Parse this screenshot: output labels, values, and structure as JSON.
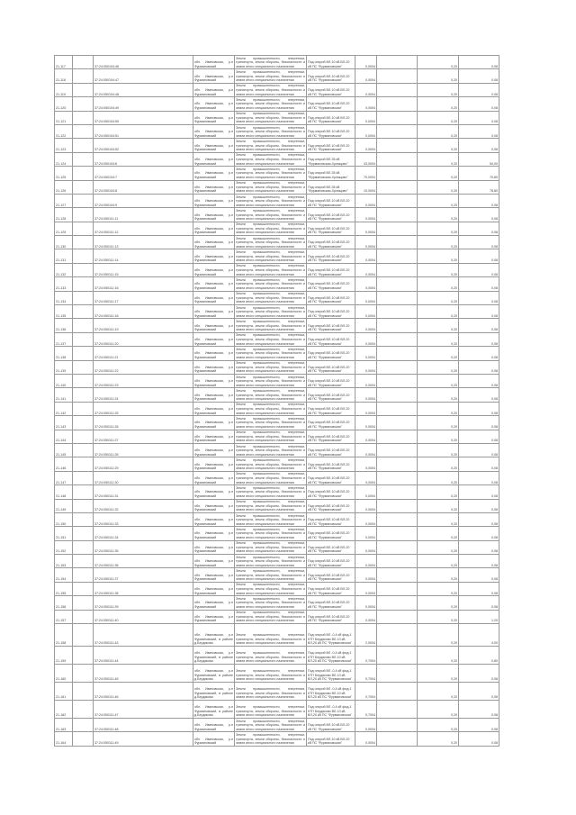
{
  "rows": [
    {
      "id": "21-117",
      "cad": "37:24:050104:46",
      "addr": "обл. Ивановская, р-н Фурмановский",
      "cat": "Земли промышленности, энергетики, транспорта, земли обороны, безопасности и земли иного специального назначения",
      "desc": "Под опорой ВЛ-10 кВ ВЛ-20 кВ ПС \"Фурмановская\"",
      "area": "0,0004",
      "c8": "0,20",
      "c9": "0,08"
    },
    {
      "id": "21-118",
      "cad": "37:24:050104:47",
      "addr": "обл. Ивановская, р-н Фурмановский",
      "cat": "Земли промышленности, энергетики, транспорта, земли обороны, безопасности и земли иного специального назначения",
      "desc": "Под опорой ВЛ-10 кВ ВЛ-20 кВ ПС \"Фурмановская\"",
      "area": "0,0004",
      "c8": "0,20",
      "c9": "0,08"
    },
    {
      "id": "21-119",
      "cad": "37:24:050104:48",
      "addr": "обл. Ивановская, р-н Фурмановский",
      "cat": "Земли промышленности, энергетики, транспорта, земли обороны, безопасности и земли иного специального назначения",
      "desc": "Под опорой ВЛ-10 кВ ВЛ-20 кВ ПС \"Фурмановская\"",
      "area": "0,0004",
      "c8": "0,20",
      "c9": "0,08"
    },
    {
      "id": "21-120",
      "cad": "37:24:050104:49",
      "addr": "обл. Ивановская, р-н Фурмановский",
      "cat": "Земли промышленности, энергетики, транспорта, земли обороны, безопасности и земли иного специального назначения",
      "desc": "Под опорой ВЛ-10 кВ ВЛ-20 кВ ПС \"Фурмановская\"",
      "area": "0,0004",
      "c8": "0,20",
      "c9": "0,08"
    },
    {
      "id": "21-121",
      "cad": "37:24:050104:50",
      "addr": "обл. Ивановская, р-н Фурмановский",
      "cat": "Земли промышленности, энергетики, транспорта, земли обороны, безопасности и земли иного специального назначения",
      "desc": "Под опорой ВЛ-10 кВ ВЛ-20 кВ ПС \"Фурмановская\"",
      "area": "0,0004",
      "c8": "0,20",
      "c9": "0,08"
    },
    {
      "id": "21-122",
      "cad": "37:24:050104:51",
      "addr": "обл. Ивановская, р-н Фурмановский",
      "cat": "Земли промышленности, энергетики, транспорта, земли обороны, безопасности и земли иного специального назначения",
      "desc": "Под опорой ВЛ-10 кВ ВЛ-20 кВ ПС \"Фурмановская\"",
      "area": "0,0004",
      "c8": "0,20",
      "c9": "0,08"
    },
    {
      "id": "21-123",
      "cad": "37:24:050104:52",
      "addr": "обл. Ивановская, р-н Фурмановский",
      "cat": "Земли промышленности, энергетики, транспорта, земли обороны, безопасности и земли иного специального назначения",
      "desc": "Под опорой ВЛ-10 кВ ВЛ-20 кВ ПС \"Фурмановская\"",
      "area": "0,0004",
      "c8": "0,20",
      "c9": "0,08"
    },
    {
      "id": "21-124",
      "cad": "37:24:050104:6",
      "addr": "обл. Ивановская, р-н Фурмановский",
      "cat": "Земли промышленности, энергетики, транспорта, земли обороны, безопасности и земли иного специального назначения",
      "desc": "Под опорой ВЛ-35 кВ \"Фурмановская-Хромцово\"",
      "area": "43,0004",
      "c8": "0,20",
      "c9": "54,00"
    },
    {
      "id": "21-125",
      "cad": "37:24:050104:7",
      "addr": "обл. Ивановская, р-н Фурмановский",
      "cat": "Земли промышленности, энергетики, транспорта, земли обороны, безопасности и земли иного специального назначения",
      "desc": "Под опорой ВЛ-35 кВ \"Фурмановская-Хромцово\"",
      "area": "70,0004",
      "c8": "0,20",
      "c9": "70,80"
    },
    {
      "id": "21-126",
      "cad": "37:24:050104:8",
      "addr": "обл. Ивановская, р-н Фурмановский",
      "cat": "Земли промышленности, энергетики, транспорта, земли обороны, безопасности и земли иного специального назначения",
      "desc": "Под опорой ВЛ-35 кВ \"Фурмановская-Хромцово\"",
      "area": "10,0004",
      "c8": "0,20",
      "c9": "78,80"
    },
    {
      "id": "21-127",
      "cad": "37:24:050104:9",
      "addr": "обл. Ивановская, р-н Фурмановский",
      "cat": "Земли промышленности, энергетики, транспорта, земли обороны, безопасности и земли иного специального назначения",
      "desc": "Под опорой ВЛ-10 кВ ВЛ-20 кВ ПС \"Фурмановская\"",
      "area": "0,0004",
      "c8": "0,20",
      "c9": "0,08"
    },
    {
      "id": "21-128",
      "cad": "37:24:050111:11",
      "addr": "обл. Ивановская, р-н Фурмановский",
      "cat": "Земли промышленности, энергетики, транспорта, земли обороны, безопасности и земли иного специального назначения",
      "desc": "Под опорой ВЛ-10 кВ ВЛ-20 кВ ПС \"Фурмановская\"",
      "area": "0,0004",
      "c8": "0,20",
      "c9": "0,08"
    },
    {
      "id": "21-129",
      "cad": "37:24:050111:12",
      "addr": "обл. Ивановская, р-н Фурмановский",
      "cat": "Земли промышленности, энергетики, транспорта, земли обороны, безопасности и земли иного специального назначения",
      "desc": "Под опорой ВЛ-10 кВ ВЛ-20 кВ ПС \"Фурмановская\"",
      "area": "0,0004",
      "c8": "0,20",
      "c9": "0,08"
    },
    {
      "id": "21-130",
      "cad": "37:24:050111:13",
      "addr": "обл. Ивановская, р-н Фурмановский",
      "cat": "Земли промышленности, энергетики, транспорта, земли обороны, безопасности и земли иного специального назначения",
      "desc": "Под опорой ВЛ-10 кВ ВЛ-20 кВ ПС \"Фурмановская\"",
      "area": "0,0004",
      "c8": "0,20",
      "c9": "0,08"
    },
    {
      "id": "21-131",
      "cad": "37:24:050111:14",
      "addr": "обл. Ивановская, р-н Фурмановский",
      "cat": "Земли промышленности, энергетики, транспорта, земли обороны, безопасности и земли иного специального назначения",
      "desc": "Под опорой ВЛ-10 кВ ВЛ-20 кВ ПС \"Фурмановская\"",
      "area": "0,0004",
      "c8": "0,20",
      "c9": "0,08"
    },
    {
      "id": "21-132",
      "cad": "37:24:050111:15",
      "addr": "обл. Ивановская, р-н Фурмановский",
      "cat": "Земли промышленности, энергетики, транспорта, земли обороны, безопасности и земли иного специального назначения",
      "desc": "Под опорой ВЛ-10 кВ ВЛ-20 кВ ПС \"Фурмановская\"",
      "area": "0,0004",
      "c8": "0,20",
      "c9": "0,08"
    },
    {
      "id": "21-133",
      "cad": "37:24:050111:16",
      "addr": "обл. Ивановская, р-н Фурмановский",
      "cat": "Земли промышленности, энергетики, транспорта, земли обороны, безопасности и земли иного специального назначения",
      "desc": "Под опорой ВЛ-10 кВ ВЛ-20 кВ ПС \"Фурмановская\"",
      "area": "0,0004",
      "c8": "0,20",
      "c9": "0,08"
    },
    {
      "id": "21-134",
      "cad": "37:24:050111:17",
      "addr": "обл. Ивановская, р-н Фурмановский",
      "cat": "Земли промышленности, энергетики, транспорта, земли обороны, безопасности и земли иного специального назначения",
      "desc": "Под опорой ВЛ-10 кВ ВЛ-20 кВ ПС \"Фурмановская\"",
      "area": "0,0004",
      "c8": "0,20",
      "c9": "0,08"
    },
    {
      "id": "21-135",
      "cad": "37:24:050111:18",
      "addr": "обл. Ивановская, р-н Фурмановский",
      "cat": "Земли промышленности, энергетики, транспорта, земли обороны, безопасности и земли иного специального назначения",
      "desc": "Под опорой ВЛ-10 кВ ВЛ-20 кВ ПС \"Фурмановская\"",
      "area": "0,0004",
      "c8": "0,20",
      "c9": "0,08"
    },
    {
      "id": "21-136",
      "cad": "37:24:050111:19",
      "addr": "обл. Ивановская, р-н Фурмановский",
      "cat": "Земли промышленности, энергетики, транспорта, земли обороны, безопасности и земли иного специального назначения",
      "desc": "Под опорой ВЛ-10 кВ ВЛ-20 кВ ПС \"Фурмановская\"",
      "area": "0,0004",
      "c8": "0,20",
      "c9": "0,08"
    },
    {
      "id": "21-137",
      "cad": "37:24:050111:20",
      "addr": "обл. Ивановская, р-н Фурмановский",
      "cat": "Земли промышленности, энергетики, транспорта, земли обороны, безопасности и земли иного специального назначения",
      "desc": "Под опорой ВЛ-10 кВ ВЛ-20 кВ ПС \"Фурмановская\"",
      "area": "0,0004",
      "c8": "0,20",
      "c9": "0,08"
    },
    {
      "id": "21-138",
      "cad": "37:24:050111:21",
      "addr": "обл. Ивановская, р-н Фурмановский",
      "cat": "Земли промышленности, энергетики, транспорта, земли обороны, безопасности и земли иного специального назначения",
      "desc": "Под опорой ВЛ-10 кВ ВЛ-20 кВ ПС \"Фурмановская\"",
      "area": "0,0004",
      "c8": "0,20",
      "c9": "0,08"
    },
    {
      "id": "21-139",
      "cad": "37:24:050111:22",
      "addr": "обл. Ивановская, р-н Фурмановский",
      "cat": "Земли промышленности, энергетики, транспорта, земли обороны, безопасности и земли иного специального назначения",
      "desc": "Под опорой ВЛ-10 кВ ВЛ-20 кВ ПС \"Фурмановская\"",
      "area": "0,0004",
      "c8": "0,20",
      "c9": "0,08"
    },
    {
      "id": "21-140",
      "cad": "37:24:050111:23",
      "addr": "обл. Ивановская, р-н Фурмановский",
      "cat": "Земли промышленности, энергетики, транспорта, земли обороны, безопасности и земли иного специального назначения",
      "desc": "Под опорой ВЛ-10 кВ ВЛ-20 кВ ПС \"Фурмановская\"",
      "area": "0,0004",
      "c8": "0,20",
      "c9": "0,08"
    },
    {
      "id": "21-141",
      "cad": "37:24:050111:24",
      "addr": "обл. Ивановская, р-н Фурмановский",
      "cat": "Земли промышленности, энергетики, транспорта, земли обороны, безопасности и земли иного специального назначения",
      "desc": "Под опорой ВЛ-10 кВ ВЛ-20 кВ ПС \"Фурмановская\"",
      "area": "0,0004",
      "c8": "0,20",
      "c9": "0,08"
    },
    {
      "id": "21-142",
      "cad": "37:24:050111:25",
      "addr": "обл. Ивановская, р-н Фурмановский",
      "cat": "Земли промышленности, энергетики, транспорта, земли обороны, безопасности и земли иного специального назначения",
      "desc": "Под опорой ВЛ-10 кВ ВЛ-20 кВ ПС \"Фурмановская\"",
      "area": "0,0004",
      "c8": "0,20",
      "c9": "0,08"
    },
    {
      "id": "21-143",
      "cad": "37:24:050111:26",
      "addr": "обл. Ивановская, р-н Фурмановский",
      "cat": "Земли промышленности, энергетики, транспорта, земли обороны, безопасности и земли иного специального назначения",
      "desc": "Под опорой ВЛ-10 кВ ВЛ-20 кВ ПС \"Фурмановская\"",
      "area": "0,0004",
      "c8": "0,20",
      "c9": "0,08"
    },
    {
      "id": "21-144",
      "cad": "37:24:050111:27",
      "addr": "обл. Ивановская, р-н Фурмановский",
      "cat": "Земли промышленности, энергетики, транспорта, земли обороны, безопасности и земли иного специального назначения",
      "desc": "Под опорой ВЛ-10 кВ ВЛ-20 кВ ПС \"Фурмановская\"",
      "area": "0,0004",
      "c8": "0,20",
      "c9": "0,08"
    },
    {
      "id": "21-145",
      "cad": "37:24:050111:28",
      "addr": "обл. Ивановская, р-н Фурмановский",
      "cat": "Земли промышленности, энергетики, транспорта, земли обороны, безопасности и земли иного специального назначения",
      "desc": "Под опорой ВЛ-10 кВ ВЛ-20 кВ ПС \"Фурмановская\"",
      "area": "0,0004",
      "c8": "0,20",
      "c9": "0,08"
    },
    {
      "id": "21-146",
      "cad": "37:24:050111:29",
      "addr": "обл. Ивановская, р-н Фурмановский",
      "cat": "Земли промышленности, энергетики, транспорта, земли обороны, безопасности и земли иного специального назначения",
      "desc": "Под опорой ВЛ-10 кВ ВЛ-20 кВ ПС \"Фурмановская\"",
      "area": "0,0004",
      "c8": "0,20",
      "c9": "0,08"
    },
    {
      "id": "21-147",
      "cad": "37:24:050111:30",
      "addr": "обл. Ивановская, р-н Фурмановский",
      "cat": "Земли промышленности, энергетики, транспорта, земли обороны, безопасности и земли иного специального назначения",
      "desc": "Под опорой ВЛ-10 кВ ВЛ-20 кВ ПС \"Фурмановская\"",
      "area": "0,0004",
      "c8": "0,20",
      "c9": "0,08"
    },
    {
      "id": "21-148",
      "cad": "37:24:050111:31",
      "addr": "обл. Ивановская, р-н Фурмановский",
      "cat": "Земли промышленности, энергетики, транспорта, земли обороны, безопасности и земли иного специального назначения",
      "desc": "Под опорой ВЛ-10 кВ ВЛ-20 кВ ПС \"Фурмановская\"",
      "area": "0,0004",
      "c8": "0,20",
      "c9": "0,08"
    },
    {
      "id": "21-149",
      "cad": "37:24:050111:32",
      "addr": "обл. Ивановская, р-н Фурмановский",
      "cat": "Земли промышленности, энергетики, транспорта, земли обороны, безопасности и земли иного специального назначения",
      "desc": "Под опорой ВЛ-10 кВ ВЛ-20 кВ ПС \"Фурмановская\"",
      "area": "0,0004",
      "c8": "0,20",
      "c9": "0,08"
    },
    {
      "id": "21-150",
      "cad": "37:24:050111:33",
      "addr": "обл. Ивановская, р-н Фурмановский",
      "cat": "Земли промышленности, энергетики, транспорта, земли обороны, безопасности и земли иного специального назначения",
      "desc": "Под опорой ВЛ-10 кВ ВЛ-20 кВ ПС \"Фурмановская\"",
      "area": "0,0004",
      "c8": "0,20",
      "c9": "0,08"
    },
    {
      "id": "21-151",
      "cad": "37:24:050111:34",
      "addr": "обл. Ивановская, р-н Фурмановский",
      "cat": "Земли промышленности, энергетики, транспорта, земли обороны, безопасности и земли иного специального назначения",
      "desc": "Под опорой ВЛ-10 кВ ВЛ-20 кВ ПС \"Фурмановская\"",
      "area": "0,0004",
      "c8": "0,20",
      "c9": "0,08"
    },
    {
      "id": "21-152",
      "cad": "37:24:050111:35",
      "addr": "обл. Ивановская, р-н Фурмановский",
      "cat": "Земли промышленности, энергетики, транспорта, земли обороны, безопасности и земли иного специального назначения",
      "desc": "Под опорой ВЛ-10 кВ ВЛ-20 кВ ПС \"Фурмановская\"",
      "area": "0,0004",
      "c8": "0,20",
      "c9": "0,08"
    },
    {
      "id": "21-153",
      "cad": "37:24:050111:36",
      "addr": "обл. Ивановская, р-н Фурмановский",
      "cat": "Земли промышленности, энергетики, транспорта, земли обороны, безопасности и земли иного специального назначения",
      "desc": "Под опорой ВЛ-10 кВ ВЛ-20 кВ ПС \"Фурмановская\"",
      "area": "0,0004",
      "c8": "0,20",
      "c9": "0,08"
    },
    {
      "id": "21-154",
      "cad": "37:24:050111:37",
      "addr": "обл. Ивановская, р-н Фурмановский",
      "cat": "Земли промышленности, энергетики, транспорта, земли обороны, безопасности и земли иного специального назначения",
      "desc": "Под опорой ВЛ-10 кВ ВЛ-20 кВ ПС \"Фурмановская\"",
      "area": "0,0004",
      "c8": "0,20",
      "c9": "0,08"
    },
    {
      "id": "21-155",
      "cad": "37:24:050111:38",
      "addr": "обл. Ивановская, р-н Фурмановский",
      "cat": "Земли промышленности, энергетики, транспорта, земли обороны, безопасности и земли иного специального назначения",
      "desc": "Под опорой ВЛ-10 кВ ВЛ-20 кВ ПС \"Фурмановская\"",
      "area": "0,0004",
      "c8": "0,20",
      "c9": "0,08"
    },
    {
      "id": "21-156",
      "cad": "37:24:050111:39",
      "addr": "обл. Ивановская, р-н Фурмановский",
      "cat": "Земли промышленности, энергетики, транспорта, земли обороны, безопасности и земли иного специального назначения",
      "desc": "Под опорой ВЛ-10 кВ ВЛ-20 кВ ПС \"Фурмановская\"",
      "area": "0,0004",
      "c8": "0,20",
      "c9": "0,08"
    },
    {
      "id": "21-157",
      "cad": "37:24:050111:40",
      "addr": "обл. Ивановская, р-н Фурмановский",
      "cat": "Земли промышленности, энергетики, транспорта, земли обороны, безопасности и земли иного специального назначения",
      "desc": "Под опорой ВЛ-10 кВ ВЛ-20 кВ ПС \"Фурмановская\"",
      "area": "0,0004",
      "c8": "0,20",
      "c9": "1,20"
    },
    {
      "id": "21-158",
      "cad": "37:24:050111:43",
      "addr": "обл. Ивановская, р-н Фурмановский, в районе д.Бердяково",
      "cat": "Земли промышленности, энергетики, транспорта, земли обороны, безопасности и земли иного специального назначения",
      "desc": "Под опорой ВЛ -0,4 кВ фид.1 КТП Бердяково ВЛ-10 кВ ВЛ-20 кВ ПС \"Фурмановская\"",
      "area": "2,0004",
      "c8": "0,20",
      "c9": "4,00"
    },
    {
      "id": "21-159",
      "cad": "37:24:050111:44",
      "addr": "обл. Ивановская, р-н Фурмановский, в районе д.Бердяково",
      "cat": "Земли промышленности, энергетики, транспорта, земли обороны, безопасности и земли иного специального назначения",
      "desc": "Под опорой ВЛ -0,4 кВ фид.1 КТП Бердяково ВЛ-10 кВ ВЛ-20 кВ ПС \"Фурмановская\"",
      "area": "0,7004",
      "c8": "0,20",
      "c9": "0,80"
    },
    {
      "id": "21-160",
      "cad": "37:24:050111:45",
      "addr": "обл. Ивановская, р-н Фурмановский, в районе д.Бердяково",
      "cat": "Земли промышленности, энергетики, транспорта, земли обороны, безопасности и земли иного специального назначения",
      "desc": "Под опорой ВЛ -0,4 кВ фид.1 КТП Бердяково ВЛ-10 кВ ВЛ-20 кВ ПС \"Фурмановская\"",
      "area": "0,7004",
      "c8": "0,20",
      "c9": "0,08"
    },
    {
      "id": "21-161",
      "cad": "37:24:050111:46",
      "addr": "обл. Ивановская, р-н Фурмановский, в районе д.Бердяково",
      "cat": "Земли промышленности, энергетики, транспорта, земли обороны, безопасности и земли иного специального назначения",
      "desc": "Под опорой ВЛ -0,4 кВ фид.1 КТП Бердяково ВЛ-10 кВ ВЛ-20 кВ ПС \"Фурмановская\"",
      "area": "0,7004",
      "c8": "0,20",
      "c9": "0,08"
    },
    {
      "id": "21-162",
      "cad": "37:24:050111:47",
      "addr": "обл. Ивановская, р-н Фурмановский, в районе д.Бердяково",
      "cat": "Земли промышленности, энергетики, транспорта, земли обороны, безопасности и земли иного специального назначения",
      "desc": "Под опорой ВЛ -0,4 кВ фид.1 КТП Бердяково ВЛ-10 кВ ВЛ-20 кВ ПС \"Фурмановская\"",
      "area": "0,7004",
      "c8": "0,20",
      "c9": "0,08"
    },
    {
      "id": "21-163",
      "cad": "37:24:050111:48",
      "addr": "обл. Ивановская, р-н Фурмановский",
      "cat": "Земли промышленности, энергетики, транспорта, земли обороны, безопасности и земли иного специального назначения",
      "desc": "Под опорой ВЛ-10 кВ ВЛ-20 кВ ПС \"Фурмановская\"",
      "area": "0,0004",
      "c8": "0,20",
      "c9": "0,08"
    },
    {
      "id": "21-164",
      "cad": "37:24:050111:49",
      "addr": "обл. Ивановская, р-н Фурмановский",
      "cat": "Земли промышленности, энергетики, транспорта, земли обороны, безопасности и земли иного специального назначения",
      "desc": "Под опорой ВЛ-10 кВ ВЛ-20 кВ ПС \"Фурмановская\"",
      "area": "0,0004",
      "c8": "0,20",
      "c9": "0,08"
    }
  ]
}
